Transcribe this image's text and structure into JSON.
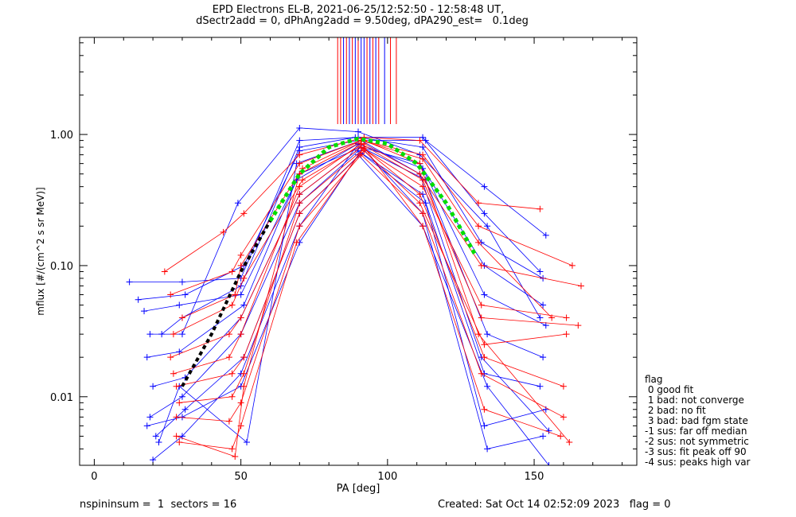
{
  "header": {
    "title_line1": "EPD Electrons EL-B, 2021-06-25/12:52:50 - 12:58:48 UT,",
    "title_line2": "dSectr2add = 0, dPhAng2add = 9.50deg, dPA290_est=   0.1deg"
  },
  "footer": {
    "left": "nspininsum =  1  sectors = 16",
    "right": "Created: Sat Oct 14 02:52:09 2023   flag = 0"
  },
  "legend": {
    "title": "flag",
    "items": [
      " 0 good fit",
      " 1 bad: not converge",
      " 2 bad: no fit",
      " 3 bad: bad fgm state",
      "-1 sus: far off median",
      "-2 sus: not symmetric",
      "-3 sus: fit peak off 90",
      "-4 sus: peaks high var"
    ]
  },
  "colors": {
    "blue_series": "#0000ff",
    "red_series": "#ff0000",
    "fit_dashed_green": "#00dd00",
    "fit_dashed_black": "#000000"
  },
  "chart_data": {
    "type": "scatter",
    "xlabel": "PA [deg]",
    "ylabel": "mflux [#/(cm^2 s sr MeV)]",
    "xlim": [
      -5,
      185
    ],
    "ylim": [
      0.003,
      5.5
    ],
    "y_scale": "log",
    "x_ticks": [
      0,
      50,
      100,
      150
    ],
    "x_tick_labels": [
      "0",
      "50",
      "100",
      "150"
    ],
    "y_ticks": [
      0.01,
      0.1,
      1.0
    ],
    "y_tick_labels": [
      "0.01",
      "0.10",
      "1.00"
    ],
    "fit_peak_pa": 90,
    "fit_peak_flux": 0.93,
    "fit_curve": [
      {
        "x": 30,
        "y": 0.012
      },
      {
        "x": 40,
        "y": 0.03
      },
      {
        "x": 50,
        "y": 0.09
      },
      {
        "x": 60,
        "y": 0.22
      },
      {
        "x": 70,
        "y": 0.5
      },
      {
        "x": 80,
        "y": 0.8
      },
      {
        "x": 90,
        "y": 0.93
      },
      {
        "x": 100,
        "y": 0.85
      },
      {
        "x": 110,
        "y": 0.6
      },
      {
        "x": 120,
        "y": 0.3
      },
      {
        "x": 130,
        "y": 0.12
      }
    ],
    "series": [
      {
        "color": "blue",
        "points": [
          {
            "x": 12,
            "y": 0.075
          },
          {
            "x": 30,
            "y": 0.075
          },
          {
            "x": 50,
            "y": 0.08
          },
          {
            "x": 70,
            "y": 0.9
          },
          {
            "x": 90,
            "y": 0.95
          },
          {
            "x": 112,
            "y": 0.8
          },
          {
            "x": 132,
            "y": 0.15
          },
          {
            "x": 153,
            "y": 0.08
          }
        ]
      },
      {
        "color": "blue",
        "points": [
          {
            "x": 15,
            "y": 0.055
          },
          {
            "x": 31,
            "y": 0.06
          },
          {
            "x": 51,
            "y": 0.1
          },
          {
            "x": 70,
            "y": 0.75
          },
          {
            "x": 90,
            "y": 0.9
          },
          {
            "x": 113,
            "y": 0.9
          },
          {
            "x": 133,
            "y": 0.4
          },
          {
            "x": 154,
            "y": 0.17
          }
        ]
      },
      {
        "color": "blue",
        "points": [
          {
            "x": 17,
            "y": 0.045
          },
          {
            "x": 29,
            "y": 0.05
          },
          {
            "x": 50,
            "y": 0.06
          },
          {
            "x": 70,
            "y": 0.5
          },
          {
            "x": 91,
            "y": 0.8
          },
          {
            "x": 111,
            "y": 0.6
          },
          {
            "x": 133,
            "y": 0.1
          },
          {
            "x": 153,
            "y": 0.05
          }
        ]
      },
      {
        "color": "blue",
        "points": [
          {
            "x": 19,
            "y": 0.03
          },
          {
            "x": 30,
            "y": 0.03
          },
          {
            "x": 49,
            "y": 0.3
          },
          {
            "x": 70,
            "y": 1.12
          },
          {
            "x": 90,
            "y": 1.05
          },
          {
            "x": 111,
            "y": 0.7
          },
          {
            "x": 134,
            "y": 0.2
          },
          {
            "x": 152,
            "y": 0.04
          }
        ]
      },
      {
        "color": "blue",
        "points": [
          {
            "x": 18,
            "y": 0.02
          },
          {
            "x": 29,
            "y": 0.022
          },
          {
            "x": 51,
            "y": 0.05
          },
          {
            "x": 69,
            "y": 0.45
          },
          {
            "x": 90,
            "y": 0.85
          },
          {
            "x": 112,
            "y": 0.55
          },
          {
            "x": 133,
            "y": 0.06
          },
          {
            "x": 154,
            "y": 0.035
          }
        ]
      },
      {
        "color": "blue",
        "points": [
          {
            "x": 20,
            "y": 0.012
          },
          {
            "x": 31,
            "y": 0.014
          },
          {
            "x": 50,
            "y": 0.04
          },
          {
            "x": 70,
            "y": 0.35
          },
          {
            "x": 91,
            "y": 0.8
          },
          {
            "x": 113,
            "y": 0.45
          },
          {
            "x": 134,
            "y": 0.03
          },
          {
            "x": 153,
            "y": 0.02
          }
        ]
      },
      {
        "color": "blue",
        "points": [
          {
            "x": 19,
            "y": 0.007
          },
          {
            "x": 30,
            "y": 0.01
          },
          {
            "x": 50,
            "y": 0.03
          },
          {
            "x": 70,
            "y": 0.3
          },
          {
            "x": 90,
            "y": 0.75
          },
          {
            "x": 112,
            "y": 0.35
          },
          {
            "x": 133,
            "y": 0.015
          },
          {
            "x": 152,
            "y": 0.012
          }
        ]
      },
      {
        "color": "blue",
        "points": [
          {
            "x": 21,
            "y": 0.005
          },
          {
            "x": 31,
            "y": 0.008
          },
          {
            "x": 51,
            "y": 0.02
          },
          {
            "x": 70,
            "y": 0.25
          },
          {
            "x": 91,
            "y": 0.72
          },
          {
            "x": 113,
            "y": 0.3
          },
          {
            "x": 133,
            "y": 0.006
          },
          {
            "x": 154,
            "y": 0.008
          }
        ]
      },
      {
        "color": "blue",
        "points": [
          {
            "x": 20,
            "y": 0.0033
          },
          {
            "x": 30,
            "y": 0.005
          },
          {
            "x": 50,
            "y": 0.015
          },
          {
            "x": 70,
            "y": 0.2
          },
          {
            "x": 90,
            "y": 0.85
          },
          {
            "x": 112,
            "y": 0.25
          },
          {
            "x": 134,
            "y": 0.004
          },
          {
            "x": 153,
            "y": 0.005
          }
        ]
      },
      {
        "color": "blue",
        "points": [
          {
            "x": 22,
            "y": 0.0045
          },
          {
            "x": 29,
            "y": 0.012
          },
          {
            "x": 52,
            "y": 0.0045
          },
          {
            "x": 69,
            "y": 0.6
          },
          {
            "x": 91,
            "y": 0.9
          },
          {
            "x": 111,
            "y": 0.5
          },
          {
            "x": 132,
            "y": 0.02
          },
          {
            "x": 155,
            "y": 0.0055
          }
        ]
      },
      {
        "color": "blue",
        "points": [
          {
            "x": 23,
            "y": 0.03
          },
          {
            "x": 30,
            "y": 0.04
          },
          {
            "x": 50,
            "y": 0.07
          },
          {
            "x": 70,
            "y": 0.8
          },
          {
            "x": 89,
            "y": 0.95
          },
          {
            "x": 112,
            "y": 0.95
          },
          {
            "x": 133,
            "y": 0.25
          },
          {
            "x": 152,
            "y": 0.09
          }
        ]
      },
      {
        "color": "blue",
        "points": [
          {
            "x": 18,
            "y": 0.006
          },
          {
            "x": 30,
            "y": 0.007
          },
          {
            "x": 50,
            "y": 0.012
          },
          {
            "x": 70,
            "y": 0.15
          },
          {
            "x": 90,
            "y": 0.7
          },
          {
            "x": 112,
            "y": 0.2
          },
          {
            "x": 134,
            "y": 0.012
          },
          {
            "x": 155,
            "y": 0.003
          }
        ]
      },
      {
        "color": "red",
        "points": [
          {
            "x": 24,
            "y": 0.09
          },
          {
            "x": 44,
            "y": 0.18
          },
          {
            "x": 51,
            "y": 0.25
          },
          {
            "x": 70,
            "y": 0.7
          },
          {
            "x": 92,
            "y": 0.95
          },
          {
            "x": 111,
            "y": 0.9
          },
          {
            "x": 131,
            "y": 0.3
          },
          {
            "x": 152,
            "y": 0.27
          }
        ]
      },
      {
        "color": "red",
        "points": [
          {
            "x": 26,
            "y": 0.06
          },
          {
            "x": 47,
            "y": 0.09
          },
          {
            "x": 50,
            "y": 0.12
          },
          {
            "x": 70,
            "y": 0.6
          },
          {
            "x": 91,
            "y": 0.9
          },
          {
            "x": 112,
            "y": 0.7
          },
          {
            "x": 131,
            "y": 0.2
          },
          {
            "x": 163,
            "y": 0.1
          }
        ]
      },
      {
        "color": "red",
        "points": [
          {
            "x": 27,
            "y": 0.03
          },
          {
            "x": 47,
            "y": 0.05
          },
          {
            "x": 51,
            "y": 0.08
          },
          {
            "x": 71,
            "y": 0.45
          },
          {
            "x": 92,
            "y": 0.85
          },
          {
            "x": 111,
            "y": 0.5
          },
          {
            "x": 132,
            "y": 0.1
          },
          {
            "x": 166,
            "y": 0.07
          }
        ]
      },
      {
        "color": "red",
        "points": [
          {
            "x": 26,
            "y": 0.02
          },
          {
            "x": 46,
            "y": 0.03
          },
          {
            "x": 50,
            "y": 0.04
          },
          {
            "x": 70,
            "y": 0.35
          },
          {
            "x": 91,
            "y": 0.8
          },
          {
            "x": 112,
            "y": 0.4
          },
          {
            "x": 132,
            "y": 0.05
          },
          {
            "x": 161,
            "y": 0.04
          }
        ]
      },
      {
        "color": "red",
        "points": [
          {
            "x": 28,
            "y": 0.012
          },
          {
            "x": 47,
            "y": 0.015
          },
          {
            "x": 51,
            "y": 0.02
          },
          {
            "x": 70,
            "y": 0.25
          },
          {
            "x": 92,
            "y": 0.75
          },
          {
            "x": 111,
            "y": 0.3
          },
          {
            "x": 133,
            "y": 0.025
          },
          {
            "x": 161,
            "y": 0.03
          }
        ]
      },
      {
        "color": "red",
        "points": [
          {
            "x": 28,
            "y": 0.007
          },
          {
            "x": 46,
            "y": 0.0065
          },
          {
            "x": 50,
            "y": 0.009
          },
          {
            "x": 70,
            "y": 0.2
          },
          {
            "x": 91,
            "y": 0.7
          },
          {
            "x": 112,
            "y": 0.25
          },
          {
            "x": 132,
            "y": 0.015
          },
          {
            "x": 160,
            "y": 0.007
          }
        ]
      },
      {
        "color": "red",
        "points": [
          {
            "x": 29,
            "y": 0.0045
          },
          {
            "x": 47,
            "y": 0.004
          },
          {
            "x": 50,
            "y": 0.006
          },
          {
            "x": 69,
            "y": 0.15
          },
          {
            "x": 92,
            "y": 0.8
          },
          {
            "x": 112,
            "y": 0.2
          },
          {
            "x": 133,
            "y": 0.008
          },
          {
            "x": 159,
            "y": 0.005
          }
        ]
      },
      {
        "color": "red",
        "points": [
          {
            "x": 28,
            "y": 0.005
          },
          {
            "x": 48,
            "y": 0.0035
          },
          {
            "x": 51,
            "y": 0.012
          },
          {
            "x": 70,
            "y": 0.5
          },
          {
            "x": 92,
            "y": 0.9
          },
          {
            "x": 111,
            "y": 0.6
          },
          {
            "x": 131,
            "y": 0.03
          },
          {
            "x": 162,
            "y": 0.0045
          }
        ]
      },
      {
        "color": "red",
        "points": [
          {
            "x": 27,
            "y": 0.015
          },
          {
            "x": 46,
            "y": 0.02
          },
          {
            "x": 50,
            "y": 0.03
          },
          {
            "x": 70,
            "y": 0.4
          },
          {
            "x": 91,
            "y": 0.85
          },
          {
            "x": 112,
            "y": 0.45
          },
          {
            "x": 132,
            "y": 0.04
          },
          {
            "x": 165,
            "y": 0.035
          }
        ]
      },
      {
        "color": "red",
        "points": [
          {
            "x": 29,
            "y": 0.009
          },
          {
            "x": 47,
            "y": 0.01
          },
          {
            "x": 51,
            "y": 0.015
          },
          {
            "x": 70,
            "y": 0.3
          },
          {
            "x": 92,
            "y": 0.78
          },
          {
            "x": 111,
            "y": 0.35
          },
          {
            "x": 133,
            "y": 0.02
          },
          {
            "x": 160,
            "y": 0.012
          }
        ]
      },
      {
        "color": "red",
        "points": [
          {
            "x": 30,
            "y": 0.04
          },
          {
            "x": 48,
            "y": 0.06
          },
          {
            "x": 50,
            "y": 0.1
          },
          {
            "x": 71,
            "y": 0.55
          },
          {
            "x": 91,
            "y": 0.9
          },
          {
            "x": 112,
            "y": 0.65
          },
          {
            "x": 131,
            "y": 0.15
          },
          {
            "x": 156,
            "y": 0.04
          }
        ]
      }
    ],
    "spikes_red_x": [
      83,
      84,
      86,
      88,
      90,
      93,
      95,
      97,
      101,
      103
    ],
    "spikes_blue_x": [
      85,
      87,
      89,
      91,
      92,
      94,
      96,
      99
    ]
  }
}
